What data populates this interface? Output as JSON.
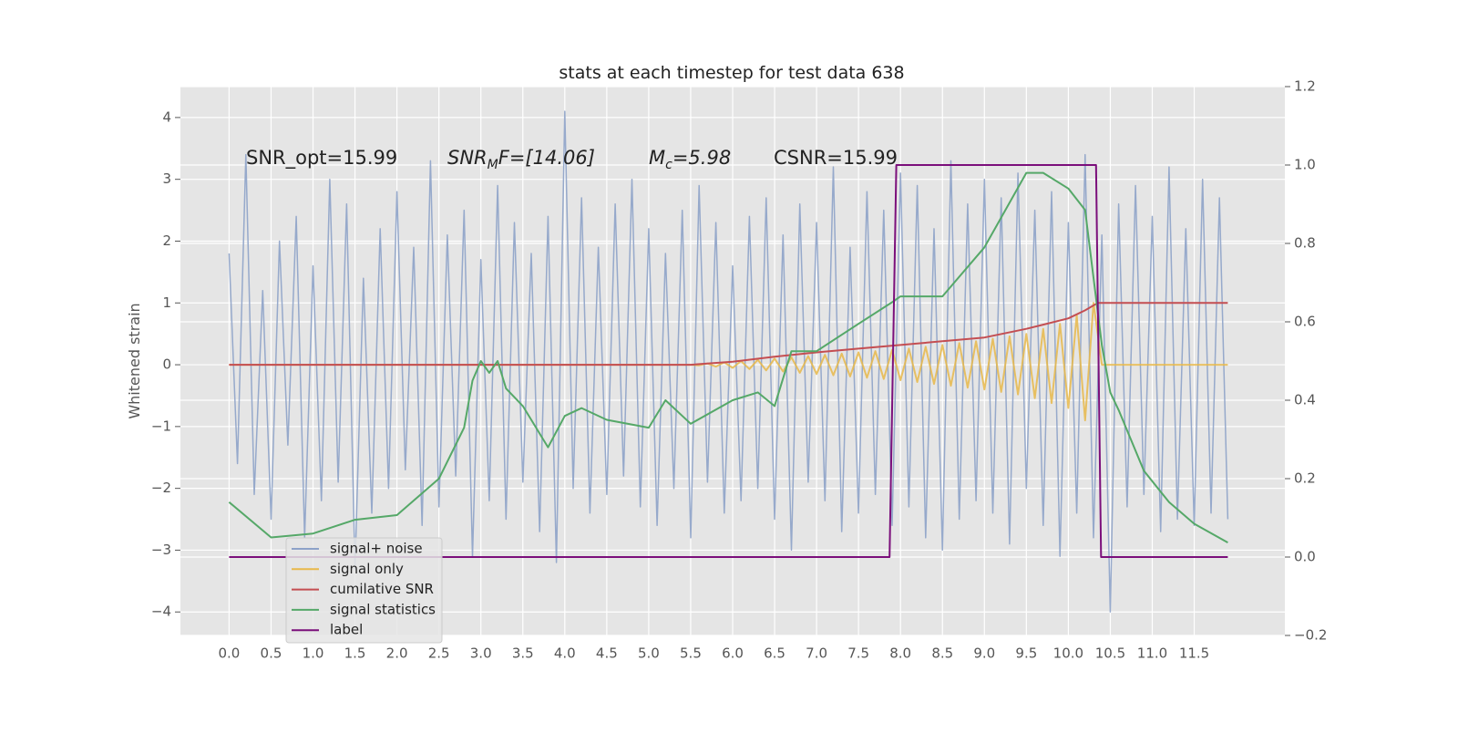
{
  "chart_data": {
    "type": "line",
    "title": "stats at each timestep for test data 638",
    "ylabel": "Whitened strain",
    "annotations": [
      {
        "text": "SNR_opt=15.99"
      },
      {
        "text": "SNR",
        "sub": "M",
        "rest": "F=[14.06]"
      },
      {
        "text": "M",
        "sub": "c",
        "rest": "=5.98"
      },
      {
        "text": "CSNR=15.99"
      }
    ],
    "xlim": [
      -0.58,
      12.58
    ],
    "ylim": [
      -4.38,
      4.5
    ],
    "y2lim": [
      -0.2,
      1.2
    ],
    "xticks": [
      {
        "value": 0,
        "label": "0.0"
      },
      0.5,
      {
        "value": 1,
        "label": "1.0"
      },
      1.5,
      {
        "value": 2,
        "label": "2.0"
      },
      2.5,
      {
        "value": 3,
        "label": "3.0"
      },
      3.5,
      {
        "value": 4,
        "label": "4.0"
      },
      4.5,
      {
        "value": 5,
        "label": "5.0"
      },
      5.5,
      {
        "value": 6,
        "label": "6.0"
      },
      6.5,
      {
        "value": 7,
        "label": "7.0"
      },
      7.5,
      {
        "value": 8,
        "label": "8.0"
      },
      8.5,
      {
        "value": 9,
        "label": "9.0"
      },
      9.5,
      {
        "value": 10,
        "label": "10.0"
      },
      10.5,
      {
        "value": 11,
        "label": "11.0"
      },
      11.5
    ],
    "yticks": [
      {
        "value": -4,
        "label": "−4"
      },
      {
        "value": -3,
        "label": "−3"
      },
      {
        "value": -2,
        "label": "−2"
      },
      {
        "value": -1,
        "label": "−1"
      },
      0,
      1,
      2,
      3,
      4
    ],
    "y2ticks": [
      {
        "value": -0.2,
        "label": "−0.2"
      },
      {
        "value": 0,
        "label": "0.0"
      },
      0.2,
      0.4,
      0.6,
      0.8,
      {
        "value": 1,
        "label": "1.0"
      },
      1.2
    ],
    "grid": true,
    "legend": "lower left",
    "series": [
      {
        "name": "signal+ noise",
        "color": "#8da2c8",
        "x": [
          0,
          0.1,
          0.2,
          0.3,
          0.4,
          0.5,
          0.6,
          0.7,
          0.8,
          0.9,
          1,
          1.1,
          1.2,
          1.3,
          1.4,
          1.5,
          1.6,
          1.7,
          1.8,
          1.9,
          2,
          2.1,
          2.2,
          2.3,
          2.4,
          2.5,
          2.6,
          2.7,
          2.8,
          2.9,
          3,
          3.1,
          3.2,
          3.3,
          3.4,
          3.5,
          3.6,
          3.7,
          3.8,
          3.9,
          4,
          4.1,
          4.2,
          4.3,
          4.4,
          4.5,
          4.6,
          4.7,
          4.8,
          4.9,
          5,
          5.1,
          5.2,
          5.3,
          5.4,
          5.5,
          5.6,
          5.7,
          5.8,
          5.9,
          6,
          6.1,
          6.2,
          6.3,
          6.4,
          6.5,
          6.6,
          6.7,
          6.8,
          6.9,
          7,
          7.1,
          7.2,
          7.3,
          7.4,
          7.5,
          7.6,
          7.7,
          7.8,
          7.9,
          8,
          8.1,
          8.2,
          8.3,
          8.4,
          8.5,
          8.6,
          8.7,
          8.8,
          8.9,
          9,
          9.1,
          9.2,
          9.3,
          9.4,
          9.5,
          9.6,
          9.7,
          9.8,
          9.9,
          10,
          10.1,
          10.2,
          10.3,
          10.4,
          10.5,
          10.6,
          10.7,
          10.8,
          10.9,
          11,
          11.1,
          11.2,
          11.3,
          11.4,
          11.5,
          11.6,
          11.7,
          11.8,
          11.9
        ],
        "values": [
          1.8,
          -1.6,
          3.4,
          -2.1,
          1.2,
          -2.5,
          2.0,
          -1.3,
          2.4,
          -2.8,
          1.6,
          -2.2,
          3.0,
          -1.9,
          2.6,
          -3.3,
          1.4,
          -2.4,
          2.2,
          -2.0,
          2.8,
          -1.7,
          1.9,
          -2.6,
          3.3,
          -2.3,
          2.1,
          -1.8,
          2.5,
          -3.1,
          1.7,
          -2.2,
          2.9,
          -2.5,
          2.3,
          -1.9,
          1.8,
          -2.7,
          2.4,
          -3.2,
          4.1,
          -2.0,
          2.7,
          -2.4,
          1.9,
          -2.1,
          2.6,
          -1.8,
          3.0,
          -2.3,
          2.2,
          -2.6,
          1.8,
          -2.0,
          2.5,
          -2.8,
          2.9,
          -1.9,
          2.3,
          -2.4,
          1.6,
          -2.2,
          2.4,
          -2.0,
          2.7,
          -2.5,
          2.1,
          -3.0,
          2.6,
          -1.9,
          2.3,
          -2.2,
          3.2,
          -2.7,
          1.9,
          -2.4,
          2.8,
          -2.1,
          2.5,
          -2.6,
          3.1,
          -2.3,
          2.9,
          -2.8,
          2.2,
          -3.0,
          3.3,
          -2.5,
          2.6,
          -2.2,
          3.0,
          -2.4,
          2.7,
          -2.9,
          3.1,
          -2.0,
          2.5,
          -2.6,
          2.8,
          -3.1,
          2.3,
          -2.4,
          3.4,
          -2.8,
          2.1,
          -4.0,
          2.6,
          -2.3,
          2.9,
          -2.1,
          2.4,
          -2.7,
          3.2,
          -2.5,
          2.2,
          -2.6,
          3.0,
          -2.4,
          2.7,
          -2.5
        ]
      },
      {
        "name": "signal only",
        "color": "#e8b84a",
        "x": [
          0,
          5.5,
          5.6,
          5.7,
          5.8,
          5.9,
          6,
          6.1,
          6.2,
          6.3,
          6.4,
          6.5,
          6.6,
          6.7,
          6.8,
          6.9,
          7,
          7.1,
          7.2,
          7.3,
          7.4,
          7.5,
          7.6,
          7.7,
          7.8,
          7.9,
          8,
          8.1,
          8.2,
          8.3,
          8.4,
          8.5,
          8.6,
          8.7,
          8.8,
          8.9,
          9,
          9.1,
          9.2,
          9.3,
          9.4,
          9.5,
          9.6,
          9.7,
          9.8,
          9.9,
          10,
          10.1,
          10.2,
          10.3,
          10.4,
          11.9
        ],
        "values": [
          0,
          0,
          -0.01,
          0.02,
          -0.03,
          0.04,
          -0.05,
          0.06,
          -0.07,
          0.08,
          -0.09,
          0.1,
          -0.11,
          0.12,
          -0.13,
          0.14,
          -0.15,
          0.16,
          -0.17,
          0.18,
          -0.19,
          0.2,
          -0.21,
          0.22,
          -0.23,
          0.24,
          -0.25,
          0.26,
          -0.28,
          0.29,
          -0.31,
          0.32,
          -0.34,
          0.35,
          -0.37,
          0.38,
          -0.4,
          0.42,
          -0.44,
          0.46,
          -0.48,
          0.5,
          -0.54,
          0.58,
          -0.62,
          0.66,
          -0.7,
          0.8,
          -0.9,
          1.0,
          0,
          0
        ]
      },
      {
        "name": "cumilative SNR",
        "color": "#c44e52",
        "x": [
          0,
          5.5,
          6,
          6.5,
          7,
          7.5,
          8,
          8.5,
          9,
          9.5,
          10,
          10.2,
          10.35,
          11.9
        ],
        "values": [
          0,
          0,
          0.05,
          0.13,
          0.2,
          0.26,
          0.32,
          0.38,
          0.44,
          0.58,
          0.75,
          0.88,
          1.0,
          1.0
        ]
      },
      {
        "name": "signal statistics",
        "color": "#55a868",
        "axis": "y2",
        "x": [
          0,
          0.5,
          1,
          1.5,
          2,
          2.5,
          2.8,
          2.9,
          3,
          3.1,
          3.2,
          3.3,
          3.5,
          3.8,
          4,
          4.2,
          4.5,
          5,
          5.2,
          5.5,
          6,
          6.3,
          6.5,
          6.7,
          7,
          7.5,
          7.9,
          8,
          8.5,
          9,
          9.5,
          9.7,
          10,
          10.2,
          10.4,
          10.5,
          10.6,
          10.9,
          11.2,
          11.5,
          11.9
        ],
        "values": [
          0.14,
          0.05,
          0.06,
          0.095,
          0.107,
          0.2,
          0.33,
          0.45,
          0.5,
          0.47,
          0.5,
          0.43,
          0.385,
          0.28,
          0.36,
          0.38,
          0.35,
          0.33,
          0.4,
          0.34,
          0.4,
          0.42,
          0.385,
          0.525,
          0.525,
          0.595,
          0.65,
          0.665,
          0.665,
          0.79,
          0.98,
          0.98,
          0.94,
          0.885,
          0.54,
          0.42,
          0.375,
          0.22,
          0.14,
          0.085,
          0.037
        ]
      },
      {
        "name": "label",
        "color": "#7b0f7b",
        "axis": "y2",
        "x": [
          0,
          7.87,
          7.95,
          10.33,
          10.39,
          11.9
        ],
        "values": [
          0,
          0,
          1,
          1,
          0,
          0
        ]
      }
    ]
  }
}
